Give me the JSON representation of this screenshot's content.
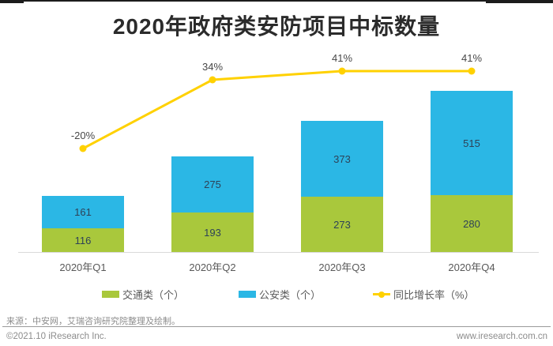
{
  "page": {
    "title": "2020年政府类安防项目中标数量",
    "source_note": "来源：中安网，艾瑞咨询研究院整理及绘制。",
    "copyright": "©2021.10 iResearch Inc.",
    "website": "www.iresearch.com.cn"
  },
  "colors": {
    "traffic_green": "#a9c83c",
    "police_blue": "#2bb7e5",
    "growth_yellow": "#ffd100",
    "title_text": "#2b2b2b",
    "bar_value_text": "#2e4257",
    "axis_line": "#d9d9d9",
    "footer_text": "#8c8c8c",
    "top_rule": "#1c1c1c"
  },
  "chart_data": {
    "type": "bar",
    "subtype": "stacked-bar-with-line",
    "title": "2020年政府类安防项目中标数量",
    "categories": [
      "2020年Q1",
      "2020年Q2",
      "2020年Q3",
      "2020年Q4"
    ],
    "series": [
      {
        "name": "交通类（个）",
        "type": "bar",
        "color": "#a9c83c",
        "values": [
          116,
          193,
          273,
          280
        ]
      },
      {
        "name": "公安类（个）",
        "type": "bar",
        "color": "#2bb7e5",
        "values": [
          161,
          275,
          373,
          515
        ]
      },
      {
        "name": "同比增长率（%）",
        "type": "line",
        "color": "#ffd100",
        "values": [
          -20,
          34,
          41,
          41
        ],
        "labels": [
          "-20%",
          "34%",
          "41%",
          "41%"
        ]
      }
    ],
    "stacked_totals": [
      277,
      468,
      646,
      795
    ],
    "legend_position": "bottom",
    "grid": false,
    "value_labels_shown": true,
    "xlabel": "",
    "ylabel": ""
  }
}
